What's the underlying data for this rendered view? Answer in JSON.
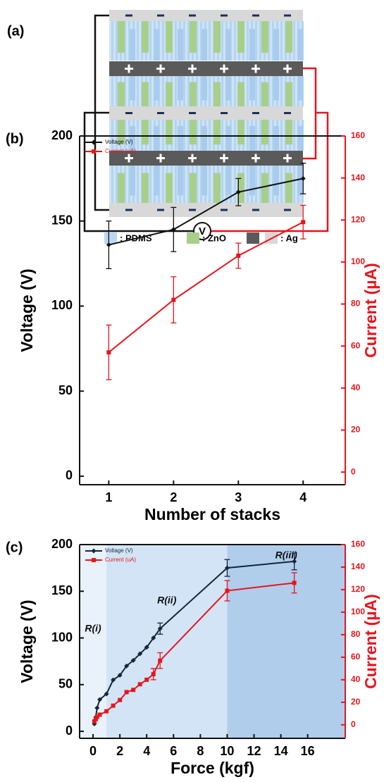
{
  "diagram": {
    "label": "(a)",
    "meter": "V",
    "legend": [
      ": PDMS",
      ": ZnO",
      ": Ag"
    ]
  },
  "chart_data": [
    {
      "type": "line",
      "panel_label": "(b)",
      "x_label": "Number of stacks",
      "y_label": "Voltage (V)",
      "y2_label": "Current (µA)",
      "y2_color": "#e8141c",
      "x": [
        1,
        2,
        3,
        4
      ],
      "xlim": [
        0.55,
        4.65
      ],
      "xticks": [
        1,
        2,
        3,
        4
      ],
      "ylim": [
        -5,
        200
      ],
      "yticks": [
        0,
        50,
        100,
        150,
        200
      ],
      "y2lim": [
        -6,
        160
      ],
      "y2ticks": [
        0,
        20,
        40,
        60,
        80,
        100,
        120,
        140,
        160
      ],
      "series": [
        {
          "name": "Voltage (V)",
          "color": "#111111",
          "marker": "diamond",
          "values": [
            136,
            145,
            167,
            175
          ],
          "errors": [
            14,
            13,
            8,
            9
          ]
        },
        {
          "name": "Current (uA)",
          "color": "#e8141c",
          "marker": "square",
          "axis": "y2",
          "values": [
            57,
            82,
            103,
            119
          ],
          "errors": [
            13,
            11,
            6,
            8
          ]
        }
      ]
    },
    {
      "type": "line",
      "panel_label": "(c)",
      "x_label": "Force (kgf)",
      "y_label": "Voltage (V)",
      "y2_label": "Current (µA)",
      "y2_color": "#e8141c",
      "x": [
        0.1,
        0.2,
        0.3,
        0.5,
        1,
        1.5,
        2,
        2.5,
        3,
        3.5,
        4,
        4.5,
        5,
        10,
        15
      ],
      "xlim": [
        -1,
        18.8
      ],
      "xticks": [
        0,
        2,
        4,
        6,
        8,
        10,
        12,
        14,
        16
      ],
      "ylim": [
        -7.5,
        200
      ],
      "yticks": [
        0,
        50,
        100,
        150,
        200
      ],
      "y2lim": [
        -12,
        160
      ],
      "y2ticks": [
        0,
        20,
        40,
        60,
        80,
        100,
        120,
        140,
        160
      ],
      "regions": [
        {
          "label": "R(i)",
          "x": [
            -1,
            1
          ],
          "color": "#e9f1fb"
        },
        {
          "label": "R(ii)",
          "x": [
            1,
            10
          ],
          "color": "#d3e4f6"
        },
        {
          "label": "R(iii)",
          "x": [
            10,
            18.8
          ],
          "color": "#b0cdec"
        }
      ],
      "series": [
        {
          "name": "Voltage (V)",
          "color": "#15263d",
          "marker": "diamond",
          "values": [
            8,
            15,
            25,
            34,
            40,
            55,
            60,
            70,
            76,
            83,
            90,
            100,
            110,
            175,
            182
          ],
          "errors": [
            null,
            null,
            null,
            null,
            null,
            null,
            null,
            null,
            null,
            null,
            null,
            null,
            6,
            9,
            9
          ]
        },
        {
          "name": "Current (uA)",
          "color": "#e8141c",
          "marker": "square",
          "axis": "y2",
          "values": [
            3,
            5,
            7,
            9,
            12,
            17,
            22,
            29,
            31,
            36,
            40,
            45,
            57,
            119,
            126
          ],
          "errors": [
            null,
            null,
            null,
            null,
            null,
            null,
            null,
            null,
            null,
            null,
            null,
            5,
            7,
            9,
            9
          ]
        }
      ]
    }
  ]
}
